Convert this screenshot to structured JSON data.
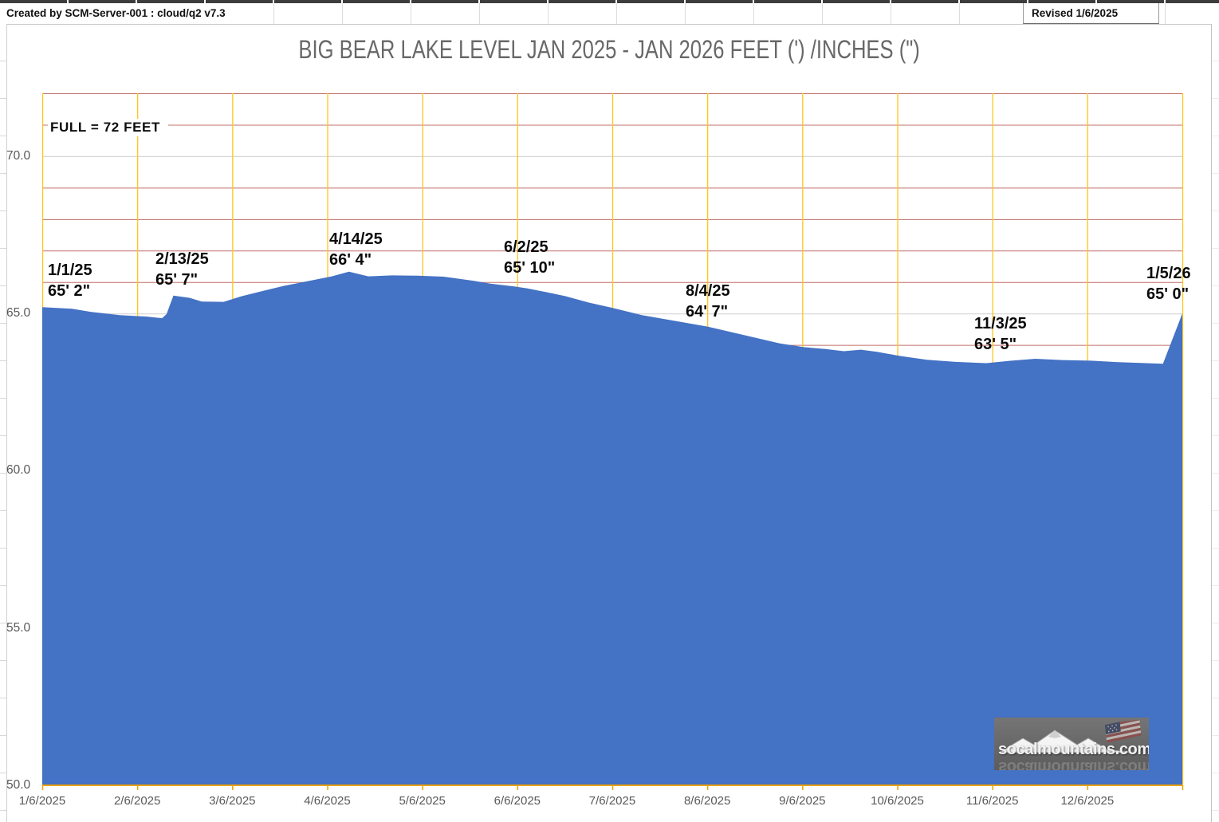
{
  "sheet": {
    "created_by": "Created by SCM-Server-001 : cloud/q2 v7.3",
    "revised": "Revised 1/6/2025"
  },
  "chart_data": {
    "type": "area",
    "title": "BIG BEAR LAKE LEVEL JAN 2025 - JAN 2026 FEET (') /INCHES (\")",
    "full_label": "FULL = 72 FEET",
    "full_level_feet": 72,
    "ylim": [
      50,
      72
    ],
    "y_major_ticks": [
      70,
      65,
      60,
      55,
      50
    ],
    "y_tick_labels": [
      "70.0",
      "65.0",
      "60.0",
      "55.0",
      "50.0"
    ],
    "x_tick_labels": [
      "1/6/2025",
      "2/6/2025",
      "3/6/2025",
      "4/6/2025",
      "5/6/2025",
      "6/6/2025",
      "7/6/2025",
      "8/6/2025",
      "9/6/2025",
      "10/6/2025",
      "11/6/2025",
      "12/6/2025"
    ],
    "grid": {
      "vertical_monthly": true,
      "minor_horizontal_every_foot": true
    },
    "annotations": [
      {
        "date": "1/1/25",
        "level": "65' 2\"",
        "feet": 65.17
      },
      {
        "date": "2/13/25",
        "level": "65' 7\"",
        "feet": 65.58
      },
      {
        "date": "4/14/25",
        "level": "66' 4\"",
        "feet": 66.33
      },
      {
        "date": "6/2/25",
        "level": "65' 10\"",
        "feet": 65.83
      },
      {
        "date": "8/4/25",
        "level": "64' 7\"",
        "feet": 64.58
      },
      {
        "date": "11/3/25",
        "level": "63' 5\"",
        "feet": 63.42
      },
      {
        "date": "1/5/26",
        "level": "65' 0\"",
        "feet": 65.0
      }
    ],
    "series_profile_x_fraction_feet": [
      [
        0,
        65.2
      ],
      [
        0.026,
        65.15
      ],
      [
        0.043,
        65.05
      ],
      [
        0.068,
        64.95
      ],
      [
        0.092,
        64.9
      ],
      [
        0.105,
        64.85
      ],
      [
        0.109,
        64.98
      ],
      [
        0.115,
        65.57
      ],
      [
        0.129,
        65.5
      ],
      [
        0.14,
        65.38
      ],
      [
        0.159,
        65.37
      ],
      [
        0.175,
        65.55
      ],
      [
        0.194,
        65.72
      ],
      [
        0.212,
        65.88
      ],
      [
        0.236,
        66.05
      ],
      [
        0.254,
        66.18
      ],
      [
        0.269,
        66.33
      ],
      [
        0.286,
        66.18
      ],
      [
        0.307,
        66.21
      ],
      [
        0.329,
        66.2
      ],
      [
        0.352,
        66.17
      ],
      [
        0.366,
        66.1
      ],
      [
        0.378,
        66.04
      ],
      [
        0.393,
        65.95
      ],
      [
        0.414,
        65.86
      ],
      [
        0.425,
        65.8
      ],
      [
        0.442,
        65.68
      ],
      [
        0.459,
        65.55
      ],
      [
        0.479,
        65.35
      ],
      [
        0.5,
        65.18
      ],
      [
        0.526,
        64.95
      ],
      [
        0.554,
        64.77
      ],
      [
        0.584,
        64.58
      ],
      [
        0.617,
        64.3
      ],
      [
        0.647,
        64.05
      ],
      [
        0.668,
        63.93
      ],
      [
        0.687,
        63.87
      ],
      [
        0.703,
        63.8
      ],
      [
        0.718,
        63.85
      ],
      [
        0.732,
        63.78
      ],
      [
        0.752,
        63.65
      ],
      [
        0.776,
        63.53
      ],
      [
        0.801,
        63.46
      ],
      [
        0.828,
        63.42
      ],
      [
        0.85,
        63.5
      ],
      [
        0.871,
        63.56
      ],
      [
        0.895,
        63.52
      ],
      [
        0.92,
        63.5
      ],
      [
        0.944,
        63.45
      ],
      [
        0.969,
        63.42
      ],
      [
        0.983,
        63.4
      ],
      [
        1,
        65.0
      ]
    ],
    "colors": {
      "area_fill": "#4472C4",
      "vertical_grid": "#FFC619",
      "minor_grid": "#C0706B",
      "major_grid": "#D6D6D6",
      "axis_line": "#EDA400"
    }
  },
  "logo": {
    "text": "socalmountains.com"
  }
}
